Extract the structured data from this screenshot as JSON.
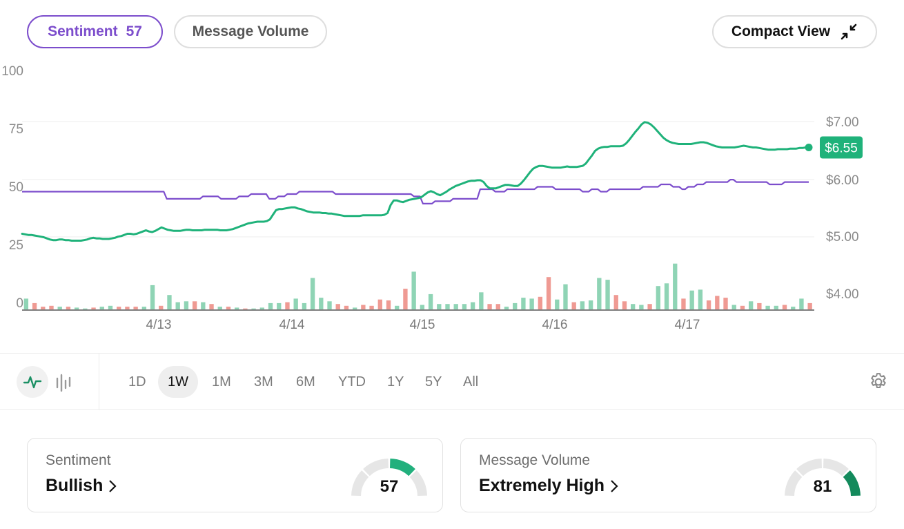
{
  "tabs": {
    "sentiment_label": "Sentiment",
    "sentiment_value": "57",
    "volume_label": "Message Volume",
    "compact_label": "Compact View"
  },
  "colors": {
    "purple": "#7c4dcc",
    "green": "#1fb27a",
    "vol_up": "#8fd4b5",
    "vol_down": "#ef9a93",
    "gauge_gray": "#e6e6e6",
    "gauge_sentiment": "#22b07d",
    "gauge_volume": "#138a5c"
  },
  "chart_data": {
    "type": "line",
    "x_labels": [
      "4/13",
      "4/14",
      "4/15",
      "4/16",
      "4/17"
    ],
    "left_axis": {
      "ticks": [
        "100",
        "75",
        "50",
        "25",
        "0"
      ],
      "range": [
        0,
        100
      ]
    },
    "right_axis": {
      "ticks": [
        "$7.00",
        "$6.00",
        "$5.00",
        "$4.00"
      ],
      "range": [
        3.9,
        7.0
      ]
    },
    "price_badge": "$6.55",
    "sentiment_series": [
      49,
      49,
      49,
      49,
      49,
      49,
      49,
      49,
      49,
      49,
      49,
      49,
      49,
      49,
      49,
      49,
      49,
      49,
      49,
      49,
      49,
      49,
      49,
      49,
      49,
      49,
      49,
      49,
      49,
      49,
      49,
      49,
      49,
      49,
      49,
      49,
      49,
      49,
      49,
      49,
      49,
      49,
      49,
      49,
      49,
      49,
      49,
      49,
      46,
      46,
      46,
      46,
      46,
      46,
      46,
      46,
      46,
      46,
      46,
      46,
      47,
      47,
      47,
      47,
      47,
      47,
      46,
      46,
      46,
      46,
      46,
      46,
      47,
      47,
      47,
      47,
      48,
      48,
      48,
      48,
      48,
      48,
      46,
      46,
      46,
      47,
      47,
      47,
      48,
      48,
      48,
      48,
      49,
      49,
      49,
      49,
      49,
      49,
      49,
      49,
      49,
      49,
      49,
      49,
      48,
      48,
      48,
      48,
      48,
      48,
      48,
      48,
      48,
      48,
      48,
      48,
      48,
      48,
      48,
      48,
      48,
      48,
      48,
      48,
      48,
      48,
      48,
      48,
      48,
      48,
      47,
      47,
      47,
      44,
      44,
      44,
      44,
      45,
      45,
      45,
      45,
      45,
      45,
      46,
      46,
      46,
      46,
      46,
      46,
      46,
      46,
      46,
      50,
      50,
      50,
      50,
      50,
      49,
      49,
      49,
      49,
      50,
      50,
      50,
      50,
      50,
      50,
      50,
      50,
      50,
      50,
      51,
      51,
      51,
      51,
      51,
      51,
      50,
      50,
      50,
      50,
      50,
      50,
      50,
      50,
      50,
      49,
      49,
      49,
      50,
      50,
      50,
      49,
      49,
      49,
      50,
      50,
      50,
      50,
      50,
      50,
      50,
      50,
      50,
      50,
      50,
      51,
      51,
      51,
      51,
      51,
      51,
      52,
      52,
      52,
      52,
      51,
      51,
      51,
      50,
      50,
      51,
      51,
      51,
      52,
      52,
      52,
      53,
      53,
      53,
      53,
      53,
      53,
      53,
      53,
      54,
      54,
      53,
      53,
      53,
      53,
      53,
      53,
      53,
      53,
      53,
      53,
      53,
      52,
      52,
      52,
      52,
      52,
      53,
      53,
      53,
      53,
      53,
      53,
      53,
      53,
      53
    ],
    "price_series": [
      5.05,
      5.04,
      5.03,
      5.03,
      5.02,
      5.01,
      5.0,
      4.99,
      4.97,
      4.95,
      4.94,
      4.94,
      4.95,
      4.95,
      4.94,
      4.94,
      4.93,
      4.93,
      4.93,
      4.93,
      4.94,
      4.95,
      4.97,
      4.98,
      4.97,
      4.97,
      4.96,
      4.96,
      4.96,
      4.97,
      4.98,
      5.0,
      5.01,
      5.03,
      5.05,
      5.05,
      5.04,
      5.05,
      5.07,
      5.09,
      5.11,
      5.09,
      5.08,
      5.1,
      5.13,
      5.16,
      5.14,
      5.12,
      5.11,
      5.1,
      5.1,
      5.1,
      5.11,
      5.12,
      5.12,
      5.11,
      5.11,
      5.11,
      5.11,
      5.12,
      5.12,
      5.12,
      5.12,
      5.12,
      5.11,
      5.11,
      5.11,
      5.12,
      5.13,
      5.15,
      5.17,
      5.19,
      5.21,
      5.23,
      5.24,
      5.25,
      5.26,
      5.26,
      5.26,
      5.27,
      5.3,
      5.38,
      5.46,
      5.48,
      5.48,
      5.49,
      5.5,
      5.51,
      5.51,
      5.49,
      5.48,
      5.46,
      5.44,
      5.43,
      5.42,
      5.42,
      5.42,
      5.41,
      5.41,
      5.4,
      5.4,
      5.39,
      5.38,
      5.37,
      5.36,
      5.36,
      5.36,
      5.36,
      5.36,
      5.36,
      5.37,
      5.37,
      5.37,
      5.37,
      5.37,
      5.37,
      5.37,
      5.38,
      5.41,
      5.55,
      5.63,
      5.63,
      5.61,
      5.6,
      5.62,
      5.64,
      5.65,
      5.66,
      5.67,
      5.69,
      5.73,
      5.77,
      5.79,
      5.77,
      5.74,
      5.72,
      5.75,
      5.78,
      5.82,
      5.85,
      5.88,
      5.9,
      5.92,
      5.94,
      5.96,
      5.97,
      5.97,
      5.98,
      5.98,
      5.95,
      5.88,
      5.84,
      5.84,
      5.84,
      5.86,
      5.88,
      5.9,
      5.9,
      5.89,
      5.88,
      5.88,
      5.92,
      5.98,
      6.05,
      6.12,
      6.18,
      6.21,
      6.23,
      6.23,
      6.22,
      6.21,
      6.2,
      6.2,
      6.2,
      6.2,
      6.21,
      6.22,
      6.21,
      6.21,
      6.21,
      6.22,
      6.23,
      6.27,
      6.34,
      6.41,
      6.49,
      6.53,
      6.55,
      6.56,
      6.56,
      6.57,
      6.57,
      6.57,
      6.57,
      6.58,
      6.62,
      6.68,
      6.75,
      6.82,
      6.88,
      6.95,
      6.99,
      6.98,
      6.95,
      6.9,
      6.84,
      6.78,
      6.72,
      6.68,
      6.65,
      6.63,
      6.62,
      6.61,
      6.61,
      6.61,
      6.61,
      6.61,
      6.62,
      6.63,
      6.64,
      6.64,
      6.63,
      6.61,
      6.59,
      6.57,
      6.56,
      6.55,
      6.55,
      6.55,
      6.55,
      6.55,
      6.56,
      6.57,
      6.58,
      6.57,
      6.56,
      6.55,
      6.55,
      6.54,
      6.53,
      6.52,
      6.51,
      6.51,
      6.51,
      6.52,
      6.52,
      6.52,
      6.52,
      6.53,
      6.53,
      6.53,
      6.54,
      6.54,
      6.55,
      6.55
    ],
    "volume_bars": [
      {
        "v": 12,
        "d": "up"
      },
      {
        "v": 7,
        "d": "down"
      },
      {
        "v": 3,
        "d": "down"
      },
      {
        "v": 4,
        "d": "down"
      },
      {
        "v": 3,
        "d": "up"
      },
      {
        "v": 3,
        "d": "down"
      },
      {
        "v": 2,
        "d": "up"
      },
      {
        "v": 1,
        "d": "up"
      },
      {
        "v": 2,
        "d": "down"
      },
      {
        "v": 3,
        "d": "up"
      },
      {
        "v": 4,
        "d": "up"
      },
      {
        "v": 3,
        "d": "down"
      },
      {
        "v": 3,
        "d": "down"
      },
      {
        "v": 3,
        "d": "down"
      },
      {
        "v": 3,
        "d": "up"
      },
      {
        "v": 27,
        "d": "up"
      },
      {
        "v": 4,
        "d": "down"
      },
      {
        "v": 16,
        "d": "up"
      },
      {
        "v": 8,
        "d": "up"
      },
      {
        "v": 9,
        "d": "up"
      },
      {
        "v": 9,
        "d": "down"
      },
      {
        "v": 8,
        "d": "up"
      },
      {
        "v": 6,
        "d": "down"
      },
      {
        "v": 3,
        "d": "up"
      },
      {
        "v": 3,
        "d": "down"
      },
      {
        "v": 2,
        "d": "up"
      },
      {
        "v": 1,
        "d": "down"
      },
      {
        "v": 1,
        "d": "up"
      },
      {
        "v": 2,
        "d": "up"
      },
      {
        "v": 7,
        "d": "up"
      },
      {
        "v": 7,
        "d": "up"
      },
      {
        "v": 8,
        "d": "down"
      },
      {
        "v": 12,
        "d": "up"
      },
      {
        "v": 7,
        "d": "up"
      },
      {
        "v": 35,
        "d": "up"
      },
      {
        "v": 13,
        "d": "up"
      },
      {
        "v": 9,
        "d": "up"
      },
      {
        "v": 6,
        "d": "down"
      },
      {
        "v": 4,
        "d": "down"
      },
      {
        "v": 2,
        "d": "up"
      },
      {
        "v": 5,
        "d": "down"
      },
      {
        "v": 4,
        "d": "down"
      },
      {
        "v": 11,
        "d": "down"
      },
      {
        "v": 10,
        "d": "down"
      },
      {
        "v": 4,
        "d": "up"
      },
      {
        "v": 23,
        "d": "down"
      },
      {
        "v": 42,
        "d": "up"
      },
      {
        "v": 5,
        "d": "up"
      },
      {
        "v": 17,
        "d": "up"
      },
      {
        "v": 6,
        "d": "up"
      },
      {
        "v": 6,
        "d": "up"
      },
      {
        "v": 6,
        "d": "up"
      },
      {
        "v": 6,
        "d": "up"
      },
      {
        "v": 8,
        "d": "up"
      },
      {
        "v": 19,
        "d": "up"
      },
      {
        "v": 6,
        "d": "down"
      },
      {
        "v": 6,
        "d": "down"
      },
      {
        "v": 3,
        "d": "up"
      },
      {
        "v": 7,
        "d": "up"
      },
      {
        "v": 13,
        "d": "up"
      },
      {
        "v": 12,
        "d": "up"
      },
      {
        "v": 14,
        "d": "down"
      },
      {
        "v": 36,
        "d": "down"
      },
      {
        "v": 11,
        "d": "up"
      },
      {
        "v": 28,
        "d": "up"
      },
      {
        "v": 8,
        "d": "down"
      },
      {
        "v": 9,
        "d": "up"
      },
      {
        "v": 10,
        "d": "up"
      },
      {
        "v": 35,
        "d": "up"
      },
      {
        "v": 33,
        "d": "up"
      },
      {
        "v": 16,
        "d": "down"
      },
      {
        "v": 9,
        "d": "down"
      },
      {
        "v": 6,
        "d": "up"
      },
      {
        "v": 5,
        "d": "up"
      },
      {
        "v": 6,
        "d": "down"
      },
      {
        "v": 26,
        "d": "up"
      },
      {
        "v": 29,
        "d": "up"
      },
      {
        "v": 51,
        "d": "up"
      },
      {
        "v": 12,
        "d": "down"
      },
      {
        "v": 21,
        "d": "up"
      },
      {
        "v": 22,
        "d": "up"
      },
      {
        "v": 10,
        "d": "down"
      },
      {
        "v": 15,
        "d": "down"
      },
      {
        "v": 13,
        "d": "down"
      },
      {
        "v": 5,
        "d": "up"
      },
      {
        "v": 4,
        "d": "down"
      },
      {
        "v": 9,
        "d": "up"
      },
      {
        "v": 7,
        "d": "down"
      },
      {
        "v": 4,
        "d": "up"
      },
      {
        "v": 4,
        "d": "up"
      },
      {
        "v": 5,
        "d": "down"
      },
      {
        "v": 3,
        "d": "up"
      },
      {
        "v": 12,
        "d": "up"
      },
      {
        "v": 7,
        "d": "down"
      }
    ]
  },
  "toolbar": {
    "ranges": [
      "1D",
      "1W",
      "1M",
      "3M",
      "6M",
      "YTD",
      "1Y",
      "5Y",
      "All"
    ],
    "active_range": "1W"
  },
  "cards": {
    "sentiment": {
      "label": "Sentiment",
      "value": "Bullish",
      "score": "57",
      "level": 0.57
    },
    "volume": {
      "label": "Message Volume",
      "value": "Extremely High",
      "score": "81",
      "level": 0.81
    }
  }
}
